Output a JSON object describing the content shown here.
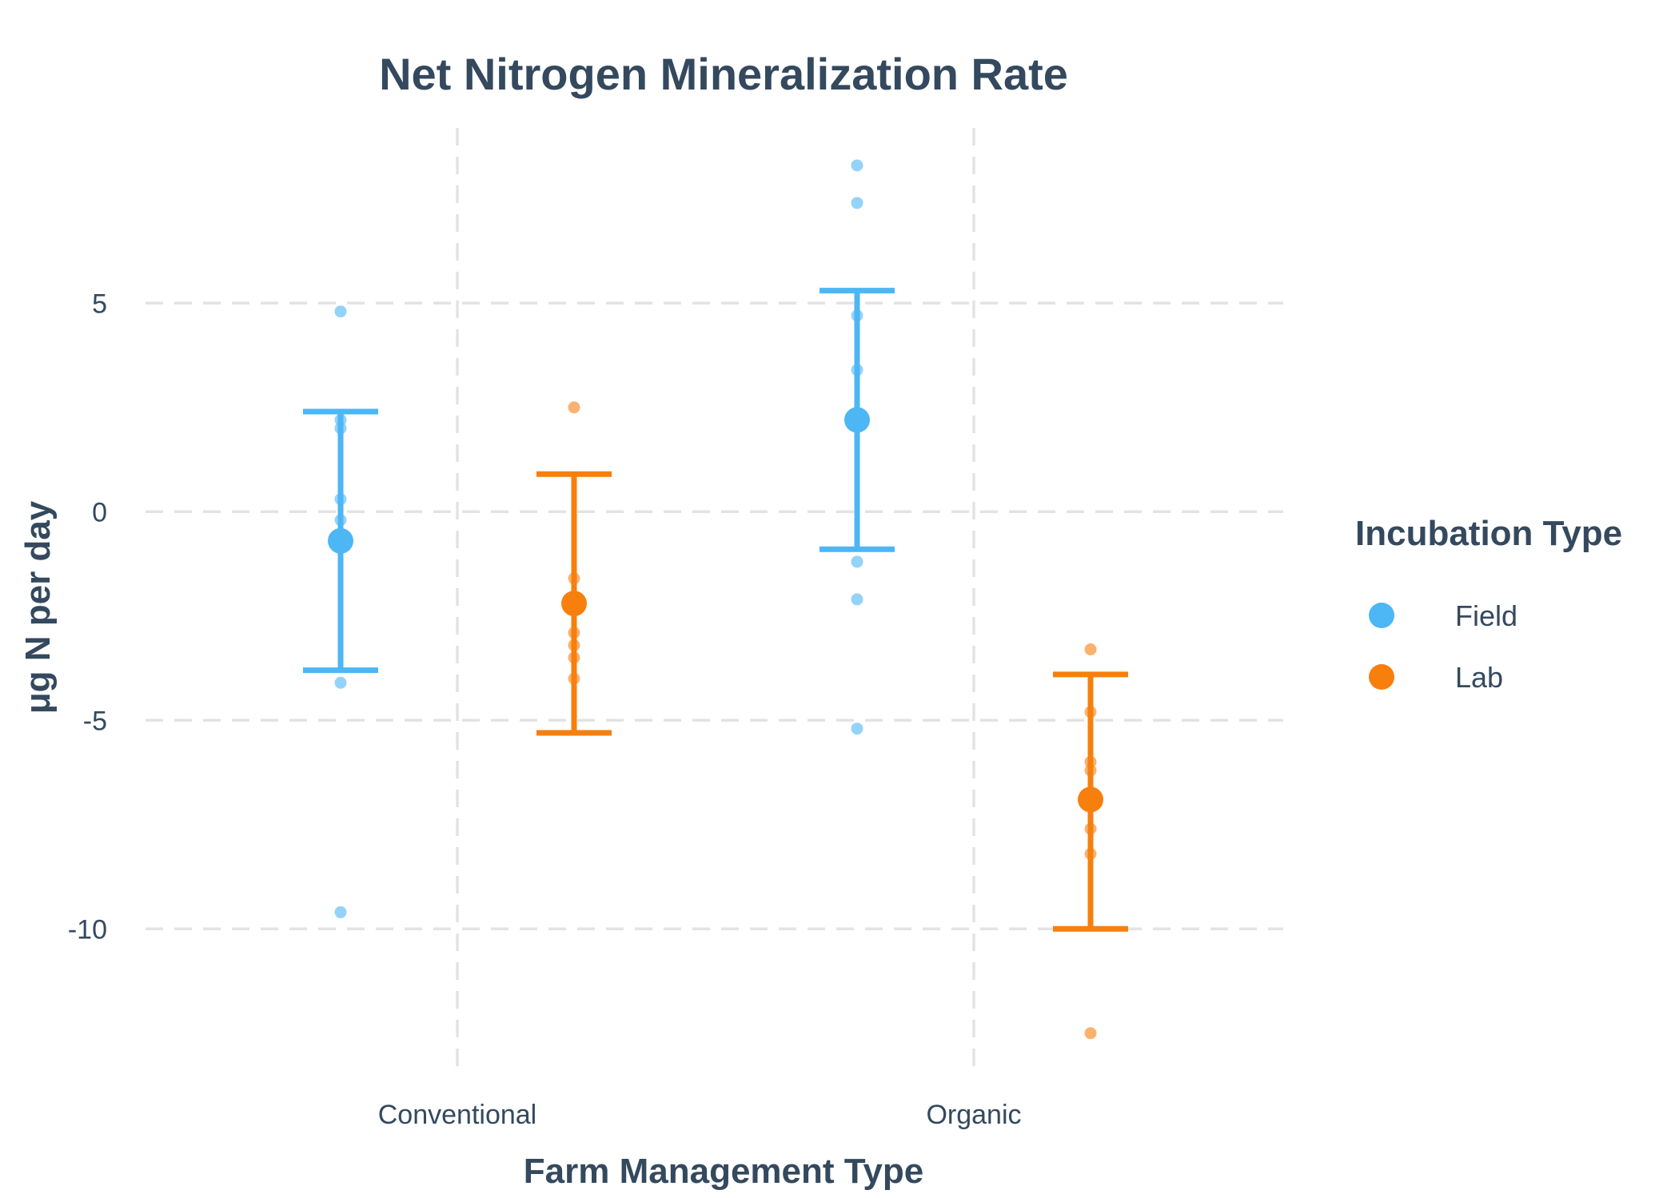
{
  "chart_data": {
    "type": "scatter",
    "title": "Net Nitrogen Mineralization Rate",
    "xlabel": "Farm Management Type",
    "ylabel": "μg N per day",
    "categories": [
      "Conventional",
      "Organic"
    ],
    "ylim": [
      -13.5,
      9.2
    ],
    "yticks": [
      5,
      0,
      -5,
      -10
    ],
    "ytick_labels": [
      "5",
      "0",
      "-5",
      "-10"
    ],
    "grid": true,
    "legend": {
      "title": "Incubation Type",
      "placement": "right"
    },
    "series": [
      {
        "name": "Field",
        "color": "#4db6f5",
        "groups": [
          {
            "category": "Conventional",
            "mean": -0.7,
            "lower": -3.8,
            "upper": 2.4,
            "points": [
              4.8,
              2.2,
              2.0,
              0.3,
              -0.2,
              -0.6,
              -4.1,
              -9.6
            ]
          },
          {
            "category": "Organic",
            "mean": 2.2,
            "lower": -0.9,
            "upper": 5.3,
            "points": [
              8.3,
              7.4,
              4.7,
              3.4,
              -1.2,
              -2.1,
              -5.2
            ]
          }
        ]
      },
      {
        "name": "Lab",
        "color": "#f77f0e",
        "groups": [
          {
            "category": "Conventional",
            "mean": -2.2,
            "lower": -5.3,
            "upper": 0.9,
            "points": [
              2.5,
              -1.6,
              -2.9,
              -3.2,
              -3.5,
              -4.0
            ]
          },
          {
            "category": "Organic",
            "mean": -6.9,
            "lower": -10.0,
            "upper": -3.9,
            "points": [
              -3.3,
              -4.8,
              -6.0,
              -6.2,
              -7.6,
              -8.2,
              -12.5
            ]
          }
        ]
      }
    ]
  }
}
